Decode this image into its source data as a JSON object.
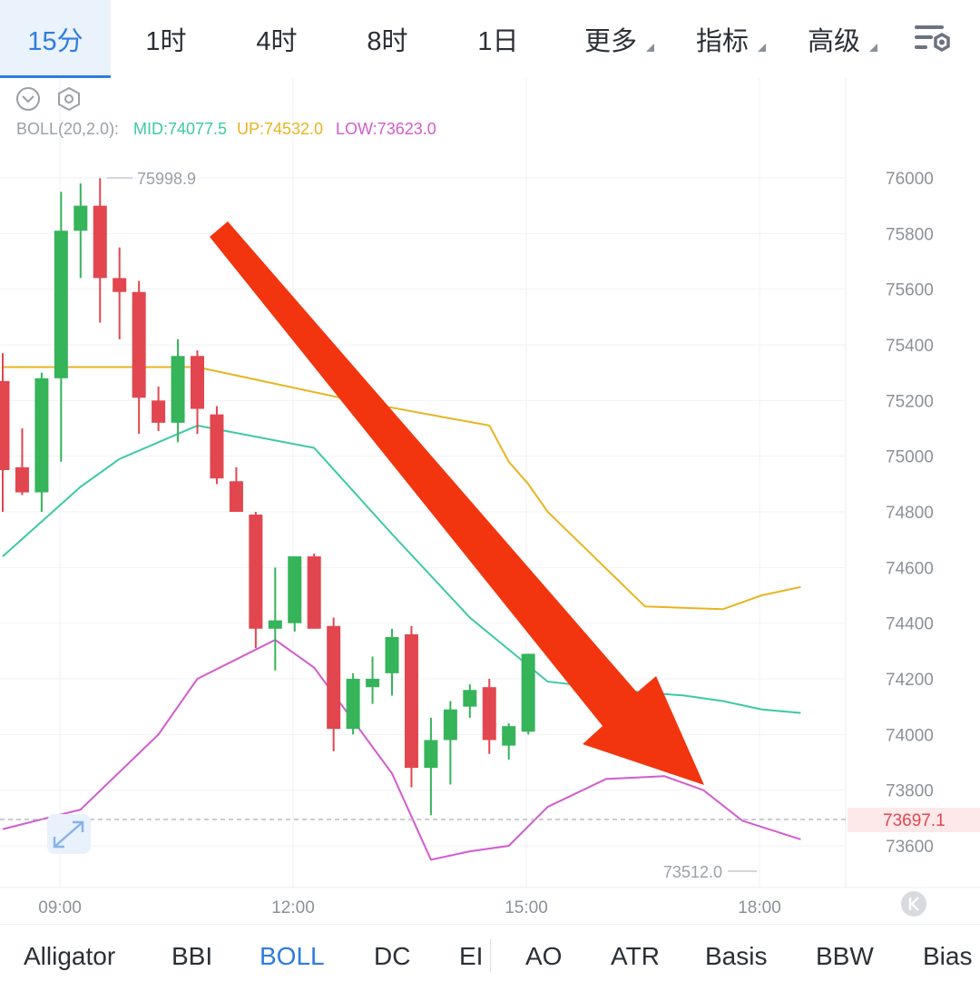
{
  "timeframe_tabs": [
    {
      "label": "15分",
      "active": true
    },
    {
      "label": "1时",
      "active": false
    },
    {
      "label": "4时",
      "active": false
    },
    {
      "label": "8时",
      "active": false
    },
    {
      "label": "1日",
      "active": false
    },
    {
      "label": "更多",
      "active": false,
      "dropdown": true
    },
    {
      "label": "指标",
      "active": false,
      "dropdown": true
    },
    {
      "label": "高级",
      "active": false,
      "dropdown": true
    }
  ],
  "settings_icon": "chart-settings-icon",
  "boll": {
    "name": "BOLL(20,2.0):",
    "mid": "MID:74077.5",
    "up": "UP:74532.0",
    "low": "LOW:73623.0",
    "colors": {
      "mid": "#3cc9a6",
      "up": "#e8b421",
      "low": "#d25bcf"
    }
  },
  "annotations": {
    "high": "75998.9",
    "low": "73512.0",
    "current_price": "73697.1"
  },
  "colors": {
    "up_candle": "#35b45a",
    "down_candle": "#e2464f",
    "arrow": "#f2350f",
    "accent": "#2f7ce0"
  },
  "chart_data": {
    "type": "candlestick",
    "y_ticks": [
      "76000",
      "75800",
      "75600",
      "75400",
      "75200",
      "75000",
      "74800",
      "74600",
      "74400",
      "74200",
      "74000",
      "73800",
      "73600"
    ],
    "x_ticks": [
      "09:00",
      "12:00",
      "15:00",
      "18:00"
    ],
    "ylim": [
      73450,
      76300
    ],
    "candles": [
      {
        "t": "08:15",
        "o": 75270,
        "h": 75370,
        "l": 74800,
        "c": 74950
      },
      {
        "t": "08:30",
        "o": 74960,
        "h": 75100,
        "l": 74860,
        "c": 74870
      },
      {
        "t": "08:45",
        "o": 74870,
        "h": 75300,
        "l": 74800,
        "c": 75280
      },
      {
        "t": "09:00",
        "o": 75280,
        "h": 75950,
        "l": 74980,
        "c": 75810
      },
      {
        "t": "09:15",
        "o": 75810,
        "h": 75980,
        "l": 75640,
        "c": 75900
      },
      {
        "t": "09:30",
        "o": 75900,
        "h": 75998.9,
        "l": 75480,
        "c": 75640
      },
      {
        "t": "09:45",
        "o": 75640,
        "h": 75750,
        "l": 75420,
        "c": 75590
      },
      {
        "t": "10:00",
        "o": 75590,
        "h": 75630,
        "l": 75080,
        "c": 75210
      },
      {
        "t": "10:15",
        "o": 75200,
        "h": 75250,
        "l": 75090,
        "c": 75120
      },
      {
        "t": "10:30",
        "o": 75120,
        "h": 75420,
        "l": 75050,
        "c": 75360
      },
      {
        "t": "10:45",
        "o": 75360,
        "h": 75380,
        "l": 75080,
        "c": 75170
      },
      {
        "t": "11:00",
        "o": 75150,
        "h": 75180,
        "l": 74900,
        "c": 74920
      },
      {
        "t": "11:15",
        "o": 74910,
        "h": 74960,
        "l": 74800,
        "c": 74800
      },
      {
        "t": "11:30",
        "o": 74790,
        "h": 74800,
        "l": 74310,
        "c": 74380
      },
      {
        "t": "11:45",
        "o": 74380,
        "h": 74600,
        "l": 74230,
        "c": 74410
      },
      {
        "t": "12:00",
        "o": 74400,
        "h": 74640,
        "l": 74370,
        "c": 74640
      },
      {
        "t": "12:15",
        "o": 74640,
        "h": 74650,
        "l": 74380,
        "c": 74380
      },
      {
        "t": "12:30",
        "o": 74390,
        "h": 74420,
        "l": 73940,
        "c": 74020
      },
      {
        "t": "12:45",
        "o": 74020,
        "h": 74220,
        "l": 74000,
        "c": 74200
      },
      {
        "t": "13:00",
        "o": 74170,
        "h": 74280,
        "l": 74110,
        "c": 74200
      },
      {
        "t": "13:15",
        "o": 74220,
        "h": 74380,
        "l": 74140,
        "c": 74350
      },
      {
        "t": "13:30",
        "o": 74360,
        "h": 74390,
        "l": 73810,
        "c": 73880
      },
      {
        "t": "13:45",
        "o": 73880,
        "h": 74060,
        "l": 73710,
        "c": 73980
      },
      {
        "t": "14:00",
        "o": 73980,
        "h": 74120,
        "l": 73820,
        "c": 74090
      },
      {
        "t": "14:15",
        "o": 74100,
        "h": 74180,
        "l": 74060,
        "c": 74160
      },
      {
        "t": "14:30",
        "o": 74170,
        "h": 74200,
        "l": 73930,
        "c": 73980
      },
      {
        "t": "14:45",
        "o": 73960,
        "h": 74040,
        "l": 73910,
        "c": 74030
      },
      {
        "t": "15:00",
        "o": 74010,
        "h": 74290,
        "l": 74000,
        "c": 74290
      }
    ],
    "boll_up": [
      [
        0,
        75320
      ],
      [
        10,
        75320
      ],
      [
        18,
        75200
      ],
      [
        25,
        75110
      ],
      [
        26,
        74980
      ],
      [
        27,
        74900
      ],
      [
        28,
        74800
      ],
      [
        33,
        74460
      ],
      [
        37,
        74450
      ],
      [
        39,
        74500
      ],
      [
        41,
        74530
      ]
    ],
    "boll_mid": [
      [
        0,
        74640
      ],
      [
        4,
        74890
      ],
      [
        6,
        74990
      ],
      [
        10,
        75110
      ],
      [
        16,
        75030
      ],
      [
        20,
        74720
      ],
      [
        24,
        74420
      ],
      [
        28,
        74190
      ],
      [
        33,
        74150
      ],
      [
        35,
        74140
      ],
      [
        37,
        74120
      ],
      [
        39,
        74090
      ],
      [
        41,
        74077.5
      ]
    ],
    "boll_low": [
      [
        0,
        73660
      ],
      [
        4,
        73730
      ],
      [
        8,
        74000
      ],
      [
        10,
        74200
      ],
      [
        14,
        74340
      ],
      [
        16,
        74240
      ],
      [
        20,
        73860
      ],
      [
        22,
        73550
      ],
      [
        24,
        73580
      ],
      [
        26,
        73600
      ],
      [
        28,
        73740
      ],
      [
        31,
        73840
      ],
      [
        34,
        73850
      ],
      [
        36,
        73800
      ],
      [
        38,
        73690
      ],
      [
        41,
        73623
      ]
    ]
  },
  "indicator_tabs": [
    {
      "label": "Alligator",
      "active": false
    },
    {
      "label": "BBI",
      "active": false
    },
    {
      "label": "BOLL",
      "active": true
    },
    {
      "label": "DC",
      "active": false
    },
    {
      "label": "EI",
      "active": false
    },
    {
      "label": "AO",
      "active": false
    },
    {
      "label": "ATR",
      "active": false
    },
    {
      "label": "Basis",
      "active": false
    },
    {
      "label": "BBW",
      "active": false
    },
    {
      "label": "Bias",
      "active": false
    }
  ]
}
